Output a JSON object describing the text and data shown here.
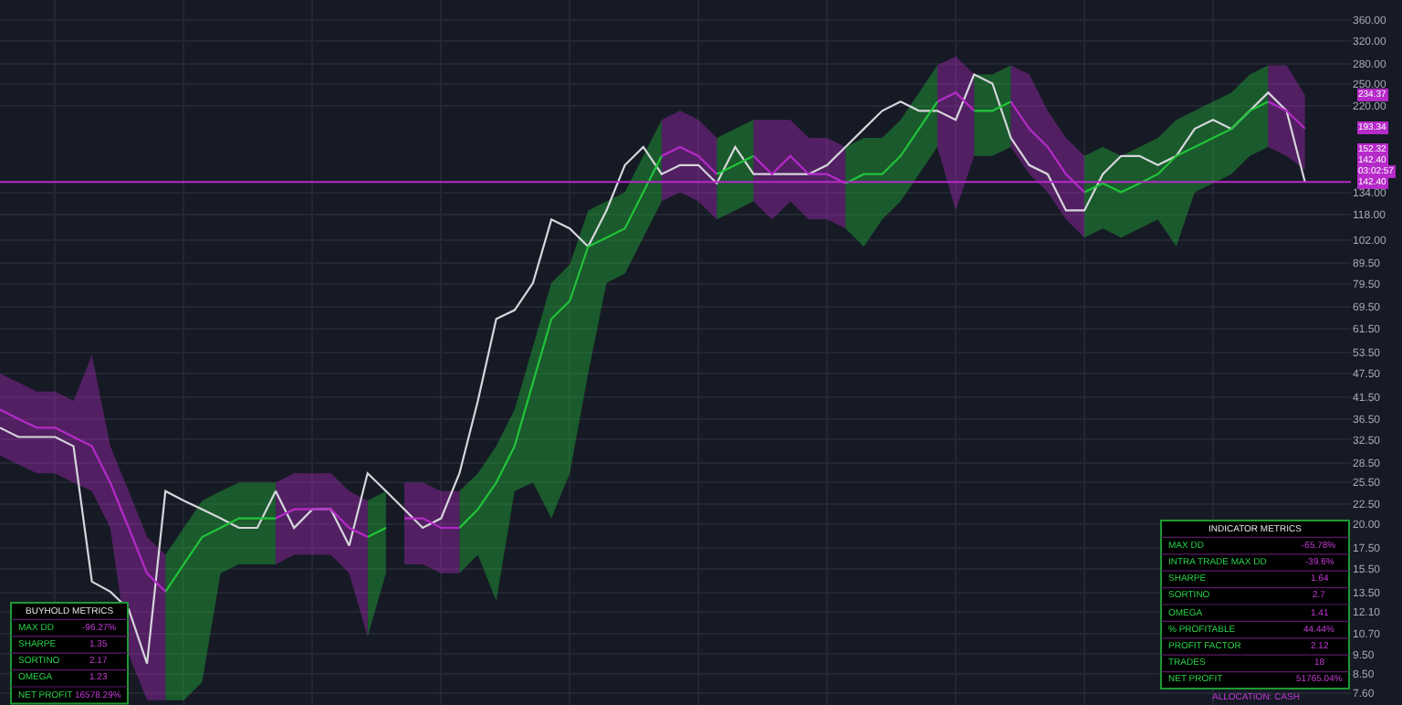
{
  "chart_data": {
    "type": "line",
    "categories": [
      null,
      null,
      null,
      null,
      null,
      null,
      null,
      null,
      null,
      null,
      null,
      null,
      null,
      null,
      null,
      null,
      null,
      null,
      null,
      null,
      null,
      null,
      null,
      null,
      null,
      null,
      null,
      null,
      null,
      null,
      null,
      null,
      null,
      null,
      null,
      null,
      null,
      null,
      null,
      null,
      null,
      null,
      null,
      null,
      null,
      null,
      null,
      null,
      null,
      null,
      null,
      null,
      null,
      null,
      null,
      null,
      null,
      null,
      null,
      null,
      null,
      null,
      null,
      null,
      null,
      null,
      null,
      null,
      null,
      null,
      null,
      null
    ],
    "series": [
      {
        "color": "#22c33a",
        "values": [
          null,
          null,
          null,
          null,
          null,
          null,
          null,
          null,
          null,
          13.6,
          15.9,
          18.6,
          19.6,
          20.7,
          20.7,
          20.7,
          null,
          null,
          null,
          null,
          18.6,
          19.6,
          null,
          null,
          null,
          19.6,
          21.8,
          25.4,
          31.3,
          45.1,
          64.9,
          72.0,
          98.3,
          103.5,
          109.0,
          134.2,
          165.2,
          null,
          null,
          148.9,
          156.8,
          165.2,
          null,
          null,
          null,
          null,
          141.3,
          148.9,
          148.9,
          165.2,
          193.0,
          225.6,
          null,
          214.1,
          214.1,
          225.6,
          null,
          null,
          null,
          134.2,
          141.3,
          134.2,
          141.3,
          148.9,
          165.2,
          174.0,
          183.2,
          193.0,
          214.1,
          225.6,
          null,
          null
        ],
        "upper": [
          null,
          null,
          null,
          null,
          null,
          null,
          null,
          null,
          null,
          16.8,
          19.6,
          22.9,
          24.2,
          25.4,
          25.4,
          25.4,
          null,
          null,
          null,
          null,
          22.9,
          24.2,
          null,
          null,
          null,
          24.2,
          26.8,
          31.3,
          38.6,
          55.5,
          79.8,
          88.6,
          120.9,
          127.4,
          134.2,
          165.2,
          203.3,
          null,
          null,
          183.2,
          193.0,
          203.3,
          null,
          null,
          null,
          null,
          174.0,
          183.2,
          183.2,
          203.3,
          237.6,
          277.7,
          null,
          263.6,
          263.6,
          277.7,
          null,
          null,
          null,
          165.2,
          174.0,
          165.2,
          174.0,
          183.2,
          203.3,
          214.1,
          225.6,
          237.6,
          263.6,
          277.7,
          null,
          null
        ],
        "lower": [
          null,
          null,
          null,
          null,
          null,
          null,
          null,
          null,
          null,
          7.3,
          7.3,
          8.1,
          15.1,
          15.9,
          15.9,
          15.9,
          null,
          null,
          null,
          null,
          10.5,
          15.1,
          null,
          null,
          null,
          15.1,
          16.8,
          12.9,
          24.2,
          25.4,
          20.7,
          26.8,
          47.5,
          79.8,
          84.1,
          103.5,
          127.4,
          null,
          null,
          114.8,
          120.9,
          127.4,
          null,
          null,
          null,
          null,
          109.0,
          98.3,
          114.8,
          127.4,
          148.9,
          174.0,
          null,
          165.2,
          165.2,
          174.0,
          null,
          null,
          null,
          103.5,
          109.0,
          103.5,
          109.0,
          114.8,
          98.3,
          134.2,
          141.3,
          148.9,
          165.2,
          174.0,
          null,
          null
        ]
      },
      {
        "color": "#b52ac8",
        "values": [
          38.6,
          36.6,
          34.8,
          34.8,
          33.0,
          31.3,
          25.4,
          19.6,
          15.1,
          13.6,
          null,
          null,
          null,
          null,
          null,
          20.7,
          21.8,
          21.8,
          21.8,
          19.6,
          18.6,
          null,
          20.7,
          20.7,
          19.6,
          19.6,
          null,
          null,
          null,
          null,
          null,
          null,
          null,
          null,
          null,
          null,
          165.2,
          174.0,
          165.2,
          148.9,
          null,
          165.2,
          148.9,
          165.2,
          148.9,
          148.9,
          141.3,
          null,
          null,
          null,
          null,
          225.6,
          237.6,
          214.1,
          null,
          225.6,
          193.0,
          174.0,
          148.9,
          134.2,
          null,
          null,
          null,
          null,
          null,
          null,
          null,
          null,
          null,
          225.6,
          214.1,
          193.34
        ],
        "upper": [
          47.5,
          45.1,
          42.8,
          42.8,
          40.6,
          52.7,
          31.3,
          24.2,
          18.6,
          16.8,
          null,
          null,
          null,
          null,
          null,
          25.4,
          26.8,
          26.8,
          26.8,
          24.2,
          22.9,
          null,
          25.4,
          25.4,
          24.2,
          24.2,
          null,
          null,
          null,
          null,
          null,
          null,
          null,
          null,
          null,
          null,
          203.3,
          214.1,
          203.3,
          183.2,
          null,
          203.3,
          203.3,
          203.3,
          183.2,
          183.2,
          174.0,
          null,
          null,
          null,
          null,
          277.7,
          292.5,
          263.6,
          null,
          277.7,
          263.6,
          214.1,
          183.2,
          165.2,
          null,
          null,
          null,
          null,
          null,
          null,
          null,
          null,
          null,
          277.7,
          277.7,
          234.37
        ],
        "lower": [
          29.7,
          28.2,
          26.8,
          26.8,
          25.4,
          24.2,
          19.6,
          9.5,
          7.3,
          7.3,
          null,
          null,
          null,
          null,
          null,
          15.9,
          16.8,
          16.8,
          16.8,
          15.1,
          10.5,
          null,
          15.9,
          15.9,
          15.1,
          15.1,
          null,
          null,
          null,
          null,
          null,
          null,
          null,
          null,
          null,
          null,
          127.4,
          134.2,
          127.4,
          114.8,
          null,
          127.4,
          114.8,
          127.4,
          114.8,
          114.8,
          109.0,
          null,
          null,
          null,
          null,
          174.0,
          120.9,
          165.2,
          null,
          174.0,
          148.9,
          134.2,
          114.8,
          103.5,
          null,
          null,
          null,
          null,
          null,
          null,
          null,
          null,
          null,
          174.0,
          165.2,
          152.32
        ]
      },
      {
        "color": "#d6d6dc",
        "values": [
          34.8,
          33.0,
          33.0,
          33.0,
          31.3,
          14.4,
          13.6,
          12.3,
          9.0,
          24.2,
          22.9,
          21.8,
          20.7,
          19.6,
          19.6,
          24.2,
          19.6,
          21.8,
          21.8,
          17.7,
          26.8,
          24.2,
          21.8,
          19.6,
          20.7,
          26.8,
          40.6,
          64.9,
          68.3,
          79.8,
          114.8,
          109.0,
          98.3,
          120.9,
          156.8,
          174.0,
          148.9,
          156.8,
          156.8,
          141.3,
          174.0,
          148.9,
          148.9,
          148.9,
          148.9,
          156.8,
          174.0,
          193.0,
          214.1,
          225.6,
          214.1,
          214.1,
          203.3,
          263.6,
          250.3,
          183.2,
          156.8,
          148.9,
          120.9,
          120.9,
          148.9,
          165.2,
          165.2,
          156.8,
          165.2,
          193.0,
          203.3,
          193.0,
          214.1,
          237.6,
          214.1,
          142.4
        ]
      }
    ],
    "log": true,
    "ylim": [
      7.1,
      404
    ],
    "yticks": [
      {
        "value": 360,
        "label": "360.00"
      },
      {
        "value": 320,
        "label": "320.00"
      },
      {
        "value": 280,
        "label": "280.00"
      },
      {
        "value": 250,
        "label": "250.00"
      },
      {
        "value": 220,
        "label": "220.00"
      },
      {
        "value": 134,
        "label": "134.00"
      },
      {
        "value": 118,
        "label": "118.00"
      },
      {
        "value": 102,
        "label": "102.00"
      },
      {
        "value": 89.5,
        "label": "89.50"
      },
      {
        "value": 79.5,
        "label": "79.50"
      },
      {
        "value": 69.5,
        "label": "69.50"
      },
      {
        "value": 61.5,
        "label": "61.50"
      },
      {
        "value": 53.5,
        "label": "53.50"
      },
      {
        "value": 47.5,
        "label": "47.50"
      },
      {
        "value": 41.5,
        "label": "41.50"
      },
      {
        "value": 36.5,
        "label": "36.50"
      },
      {
        "value": 32.5,
        "label": "32.50"
      },
      {
        "value": 28.5,
        "label": "28.50"
      },
      {
        "value": 25.5,
        "label": "25.50"
      },
      {
        "value": 22.5,
        "label": "22.50"
      },
      {
        "value": 20,
        "label": "20.00"
      },
      {
        "value": 17.5,
        "label": "17.50"
      },
      {
        "value": 15.5,
        "label": "15.50"
      },
      {
        "value": 13.5,
        "label": "13.50"
      },
      {
        "value": 12.1,
        "label": "12.10"
      },
      {
        "value": 10.7,
        "label": "10.70"
      },
      {
        "value": 9.5,
        "label": "9.50"
      },
      {
        "value": 8.5,
        "label": "8.50"
      },
      {
        "value": 7.6,
        "label": "7.60"
      }
    ],
    "tick_labels": "y",
    "grid": true,
    "ref_lines": [
      {
        "axis": "y",
        "value": 142.4,
        "label": "142.40",
        "color": "#b52ac8"
      }
    ],
    "annotations": [
      "BUYHOLD METRICS",
      "MAX DD",
      "-96.27%",
      "SHARPE",
      "1.35",
      "SORTINO",
      "2.17",
      "OMEGA",
      "1.23",
      "NET PROFIT",
      "16578.29%",
      "INDICATOR METRICS",
      "MAX DD",
      "-65.78%",
      "INTRA TRADE MAX DD",
      "-39.6%",
      "SHARPE",
      "1.64",
      "SORTINO",
      "2.7",
      "OMEGA",
      "1.41",
      "% PROFITABLE",
      "44.44%",
      "PROFIT FACTOR",
      "2.12",
      "TRADES",
      "18",
      "NET PROFIT",
      "51765.04%",
      "ALLOCATION: CASH",
      "03:02:57",
      "234.37",
      "193.34",
      "152.32",
      "142.40"
    ]
  }
}
